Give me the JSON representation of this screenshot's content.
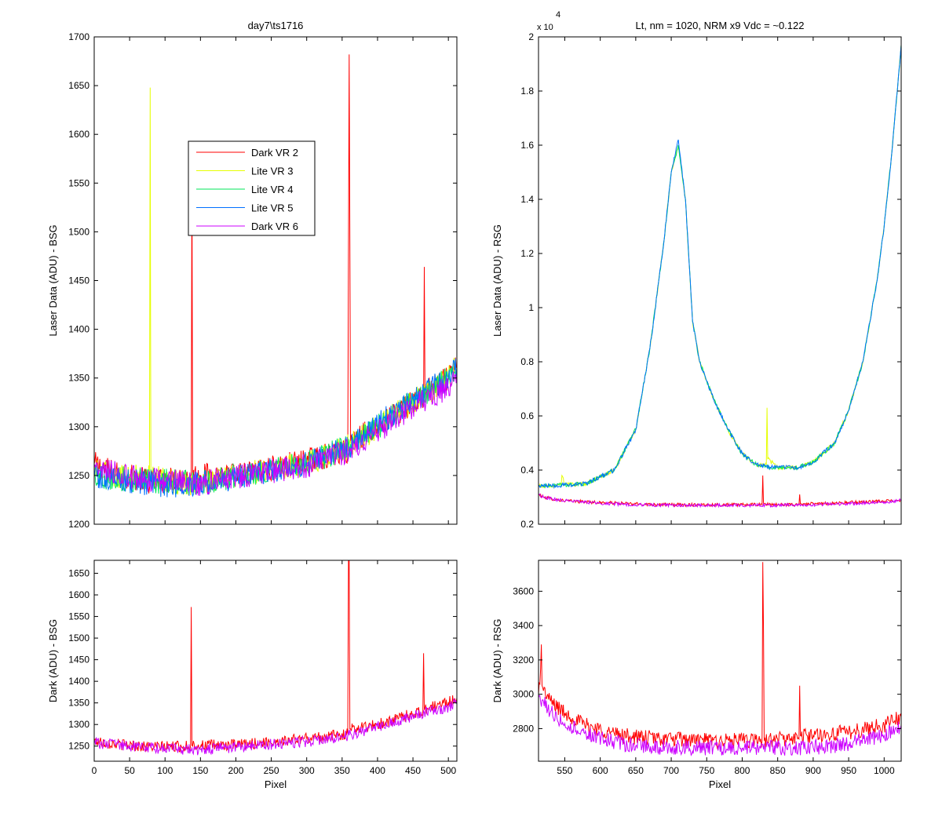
{
  "colors": {
    "Dark VR 2": "#ff0000",
    "Lite VR 3": "#e6ff00",
    "Lite VR 4": "#00e65a",
    "Lite VR 5": "#0070ff",
    "Dark VR 6": "#cc00ff"
  },
  "chart_data": [
    {
      "id": "top-left",
      "type": "line",
      "title": "day7\\ts1716",
      "xlabel": "",
      "ylabel": "Laser Data (ADU) - BSG",
      "xlim": [
        0,
        512
      ],
      "ylim": [
        1200,
        1700
      ],
      "xticks": [],
      "yticks": [
        1200,
        1250,
        1300,
        1350,
        1400,
        1450,
        1500,
        1550,
        1600,
        1650,
        1700
      ],
      "legend": {
        "placement": "upper-middle",
        "entries": [
          "Dark VR 2",
          "Lite VR 3",
          "Lite VR 4",
          "Lite VR 5",
          "Dark VR 6"
        ]
      },
      "series": [
        {
          "name": "Dark VR 2",
          "x": [
            0,
            30,
            80,
            137,
            138,
            139,
            200,
            300,
            358,
            360,
            362,
            400,
            450,
            465,
            466,
            467,
            500,
            512
          ],
          "y": [
            1262,
            1252,
            1244,
            1248,
            1570,
            1250,
            1250,
            1265,
            1275,
            1682,
            1285,
            1300,
            1325,
            1330,
            1464,
            1335,
            1350,
            1360
          ]
        },
        {
          "name": "Lite VR 3",
          "x": [
            0,
            30,
            78,
            79,
            80,
            100,
            150,
            200,
            300,
            360,
            400,
            450,
            500,
            512
          ],
          "y": [
            1255,
            1250,
            1248,
            1648,
            1250,
            1244,
            1242,
            1250,
            1262,
            1280,
            1300,
            1325,
            1350,
            1362
          ]
        },
        {
          "name": "Lite VR 4",
          "x": [
            0,
            50,
            100,
            150,
            200,
            300,
            360,
            400,
            450,
            500,
            512
          ],
          "y": [
            1250,
            1246,
            1244,
            1242,
            1250,
            1262,
            1280,
            1300,
            1325,
            1350,
            1360
          ]
        },
        {
          "name": "Lite VR 5",
          "x": [
            0,
            50,
            100,
            150,
            200,
            300,
            360,
            400,
            450,
            500,
            512
          ],
          "y": [
            1250,
            1244,
            1240,
            1242,
            1248,
            1262,
            1280,
            1302,
            1328,
            1350,
            1360
          ]
        },
        {
          "name": "Dark VR 6",
          "x": [
            0,
            50,
            100,
            150,
            200,
            300,
            360,
            400,
            450,
            500,
            512
          ],
          "y": [
            1258,
            1248,
            1244,
            1242,
            1248,
            1260,
            1275,
            1295,
            1320,
            1340,
            1355
          ]
        }
      ]
    },
    {
      "id": "top-right",
      "type": "line",
      "title": "Lt, nm = 1020, NRM x9 Vdc = ~0.122",
      "xlabel": "",
      "ylabel": "Laser Data (ADU) - RSG",
      "y_exponent_label": "x 10",
      "y_exponent_power": "4",
      "xlim": [
        513,
        1024
      ],
      "ylim": [
        0.2,
        2
      ],
      "xticks": [],
      "yticks": [
        0.2,
        0.4,
        0.6,
        0.8,
        1,
        1.2,
        1.4,
        1.6,
        1.8,
        2
      ],
      "ytick_labels": [
        "0.2",
        "0.4",
        "0.6",
        "0.8",
        "1",
        "1.2",
        "1.4",
        "1.6",
        "1.8",
        "2"
      ],
      "series": [
        {
          "name": "Dark VR 2",
          "x": [
            513,
            520,
            540,
            560,
            600,
            650,
            700,
            750,
            800,
            828,
            829,
            830,
            850,
            880,
            881,
            882,
            900,
            950,
            1000,
            1024
          ],
          "y": [
            0.31,
            0.3,
            0.29,
            0.285,
            0.28,
            0.275,
            0.272,
            0.272,
            0.272,
            0.272,
            0.38,
            0.275,
            0.272,
            0.272,
            0.31,
            0.275,
            0.275,
            0.28,
            0.285,
            0.29
          ]
        },
        {
          "name": "Lite VR 3",
          "x": [
            513,
            540,
            545,
            546,
            550,
            580,
            620,
            650,
            670,
            690,
            700,
            710,
            720,
            730,
            740,
            760,
            780,
            800,
            820,
            830,
            834,
            835,
            836,
            850,
            880,
            900,
            930,
            950,
            970,
            990,
            1000,
            1010,
            1020,
            1024
          ],
          "y": [
            0.34,
            0.345,
            0.345,
            0.38,
            0.345,
            0.35,
            0.4,
            0.55,
            0.85,
            1.25,
            1.5,
            1.6,
            1.4,
            0.95,
            0.8,
            0.66,
            0.55,
            0.46,
            0.42,
            0.42,
            0.42,
            0.63,
            0.44,
            0.41,
            0.41,
            0.43,
            0.5,
            0.62,
            0.8,
            1.1,
            1.3,
            1.55,
            1.85,
            1.97
          ]
        },
        {
          "name": "Lite VR 4",
          "x": [
            513,
            550,
            580,
            620,
            650,
            670,
            690,
            700,
            710,
            720,
            730,
            740,
            760,
            780,
            800,
            820,
            840,
            850,
            880,
            900,
            930,
            950,
            970,
            990,
            1000,
            1010,
            1020,
            1024
          ],
          "y": [
            0.34,
            0.345,
            0.35,
            0.4,
            0.55,
            0.85,
            1.25,
            1.5,
            1.6,
            1.4,
            0.95,
            0.8,
            0.66,
            0.55,
            0.46,
            0.42,
            0.41,
            0.41,
            0.41,
            0.43,
            0.5,
            0.62,
            0.8,
            1.1,
            1.3,
            1.55,
            1.85,
            1.97
          ]
        },
        {
          "name": "Lite VR 5",
          "x": [
            513,
            550,
            580,
            620,
            650,
            670,
            690,
            700,
            710,
            720,
            730,
            740,
            760,
            780,
            800,
            820,
            840,
            850,
            880,
            900,
            930,
            950,
            970,
            990,
            1000,
            1010,
            1020,
            1024
          ],
          "y": [
            0.34,
            0.345,
            0.35,
            0.4,
            0.55,
            0.85,
            1.25,
            1.5,
            1.62,
            1.4,
            0.95,
            0.8,
            0.66,
            0.55,
            0.46,
            0.42,
            0.41,
            0.41,
            0.41,
            0.43,
            0.5,
            0.62,
            0.8,
            1.1,
            1.3,
            1.55,
            1.85,
            1.97
          ]
        },
        {
          "name": "Dark VR 6",
          "x": [
            513,
            520,
            540,
            560,
            600,
            650,
            700,
            750,
            800,
            850,
            900,
            950,
            1000,
            1024
          ],
          "y": [
            0.31,
            0.3,
            0.29,
            0.285,
            0.278,
            0.272,
            0.27,
            0.27,
            0.27,
            0.27,
            0.272,
            0.276,
            0.282,
            0.288
          ]
        }
      ]
    },
    {
      "id": "bottom-left",
      "type": "line",
      "title": "",
      "xlabel": "Pixel",
      "ylabel": "Dark (ADU) - BSG",
      "xlim": [
        0,
        512
      ],
      "ylim": [
        1215,
        1680
      ],
      "xticks": [
        0,
        50,
        100,
        150,
        200,
        250,
        300,
        350,
        400,
        450,
        500
      ],
      "yticks": [
        1250,
        1300,
        1350,
        1400,
        1450,
        1500,
        1550,
        1600,
        1650
      ],
      "series": [
        {
          "name": "Dark VR 2",
          "x": [
            0,
            30,
            80,
            136,
            137,
            138,
            200,
            300,
            358,
            359,
            360,
            361,
            362,
            400,
            450,
            464,
            465,
            466,
            500,
            512
          ],
          "y": [
            1262,
            1255,
            1248,
            1250,
            1572,
            1252,
            1252,
            1268,
            1278,
            1680,
            1680,
            1290,
            1290,
            1300,
            1325,
            1330,
            1465,
            1335,
            1352,
            1362
          ]
        },
        {
          "name": "Dark VR 6",
          "x": [
            0,
            50,
            100,
            150,
            200,
            300,
            360,
            400,
            450,
            500,
            512
          ],
          "y": [
            1258,
            1250,
            1244,
            1242,
            1248,
            1260,
            1275,
            1295,
            1320,
            1340,
            1355
          ]
        }
      ]
    },
    {
      "id": "bottom-right",
      "type": "line",
      "title": "",
      "xlabel": "Pixel",
      "ylabel": "Dark (ADU) - RSG",
      "xlim": [
        513,
        1024
      ],
      "ylim": [
        2610,
        3780
      ],
      "xticks": [
        550,
        600,
        650,
        700,
        750,
        800,
        850,
        900,
        950,
        1000
      ],
      "yticks": [
        2800,
        3000,
        3200,
        3400,
        3600
      ],
      "series": [
        {
          "name": "Dark VR 2",
          "x": [
            513,
            516,
            517,
            518,
            520,
            530,
            550,
            580,
            620,
            650,
            700,
            750,
            800,
            828,
            829,
            830,
            831,
            850,
            880,
            881,
            882,
            900,
            950,
            1000,
            1024
          ],
          "y": [
            3000,
            3150,
            3290,
            3050,
            3020,
            2960,
            2890,
            2820,
            2770,
            2750,
            2740,
            2730,
            2730,
            2730,
            3770,
            3370,
            2730,
            2740,
            2740,
            3050,
            2760,
            2760,
            2780,
            2820,
            2870
          ]
        },
        {
          "name": "Dark VR 6",
          "x": [
            513,
            520,
            530,
            550,
            580,
            620,
            650,
            700,
            750,
            800,
            850,
            900,
            950,
            1000,
            1024
          ],
          "y": [
            2980,
            2960,
            2900,
            2830,
            2770,
            2720,
            2700,
            2690,
            2685,
            2685,
            2685,
            2690,
            2710,
            2760,
            2820
          ]
        }
      ]
    }
  ]
}
